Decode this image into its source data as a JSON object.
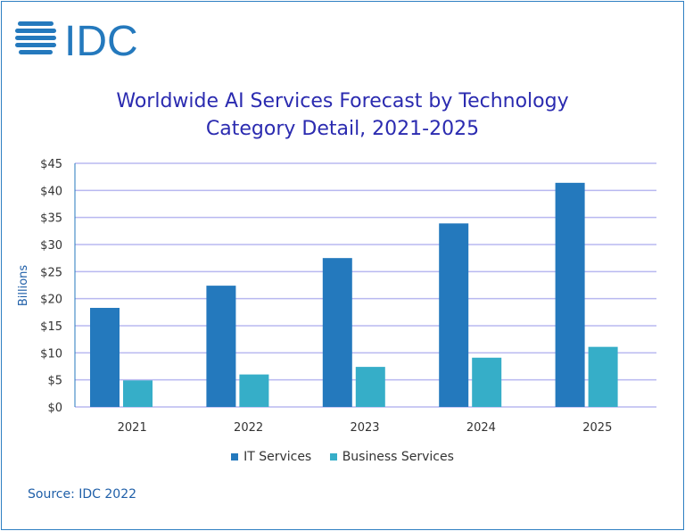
{
  "logo": "IDC",
  "source": "Source: IDC 2022",
  "chart_data": {
    "type": "bar",
    "title_lines": [
      "Worldwide AI Services Forecast by Technology",
      "Category Detail, 2021-2025"
    ],
    "xlabel": "",
    "ylabel": "Billions",
    "ylim": [
      0,
      45
    ],
    "yticks": [
      "$0",
      "$5",
      "$10",
      "$15",
      "$20",
      "$25",
      "$30",
      "$35",
      "$40",
      "$45"
    ],
    "categories": [
      "2021",
      "2022",
      "2023",
      "2024",
      "2025"
    ],
    "series": [
      {
        "name": "IT Services",
        "color": "#2479bd",
        "values": [
          18.3,
          22.4,
          27.5,
          33.9,
          41.4
        ]
      },
      {
        "name": "Business Services",
        "color": "#36aec8",
        "values": [
          4.9,
          6.0,
          7.4,
          9.1,
          11.1
        ]
      }
    ],
    "grid": true,
    "grid_color": "#b8b8f0",
    "legend": "bottom"
  }
}
